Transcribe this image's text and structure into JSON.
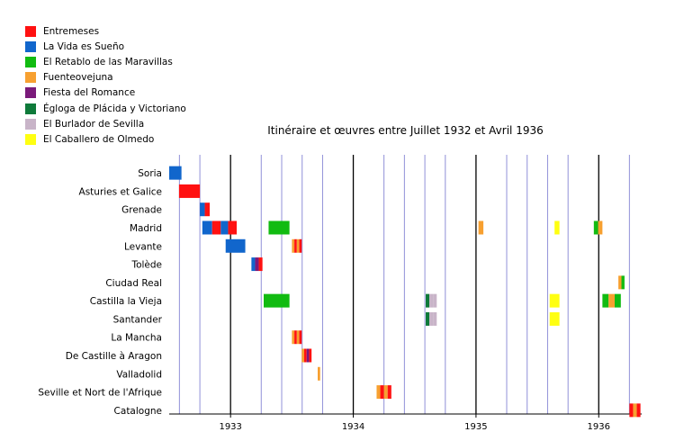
{
  "chart_data": {
    "type": "timeline",
    "title": "Itinéraire et œuvres entre Juillet 1932 et Avril 1936",
    "works": [
      {
        "name": "Entremeses",
        "color": "#ff1111"
      },
      {
        "name": "La Vida es Sueño",
        "color": "#1166cc"
      },
      {
        "name": "El Retablo de las Maravillas",
        "color": "#11bb11"
      },
      {
        "name": "Fuenteovejuna",
        "color": "#f7a030"
      },
      {
        "name": "Fiesta del Romance",
        "color": "#7a1a7a"
      },
      {
        "name": "Égloga de Plácida y Victoriano",
        "color": "#0f7a3a"
      },
      {
        "name": "El Burlador de Sevilla",
        "color": "#c8b4c8"
      },
      {
        "name": "El Caballero de Olmedo",
        "color": "#ffff11"
      }
    ],
    "regions": [
      "Soria",
      "Asturies et Galice",
      "Grenade",
      "Madrid",
      "Levante",
      "Tolède",
      "Ciudad Real",
      "Castilla la Vieja",
      "Santander",
      "La Mancha",
      "De Castille à Aragon",
      "Valladolid",
      "Seville et Nort de l'Afrique",
      "Catalogne"
    ],
    "x_axis": {
      "start": 1932.5,
      "end": 1936.35,
      "year_ticks": [
        "1933",
        "1934",
        "1935",
        "1936"
      ],
      "minor_grid_months": [
        4,
        6,
        8,
        10
      ]
    },
    "events": [
      {
        "region": "Soria",
        "start": 1932.5,
        "end": 1932.6,
        "works": [
          "La Vida es Sueño"
        ]
      },
      {
        "region": "Asturies et Galice",
        "start": 1932.58,
        "end": 1932.75,
        "works": [
          "Entremeses"
        ]
      },
      {
        "region": "Grenade",
        "start": 1932.75,
        "end": 1932.83,
        "works": [
          "La Vida es Sueño",
          "Entremeses"
        ]
      },
      {
        "region": "Madrid",
        "start": 1932.77,
        "end": 1932.85,
        "works": [
          "La Vida es Sueño"
        ]
      },
      {
        "region": "Madrid",
        "start": 1932.85,
        "end": 1932.92,
        "works": [
          "Entremeses"
        ]
      },
      {
        "region": "Madrid",
        "start": 1932.92,
        "end": 1932.98,
        "works": [
          "La Vida es Sueño"
        ]
      },
      {
        "region": "Madrid",
        "start": 1932.98,
        "end": 1933.05,
        "works": [
          "Entremeses"
        ]
      },
      {
        "region": "Madrid",
        "start": 1933.31,
        "end": 1933.48,
        "works": [
          "El Retablo de las Maravillas"
        ]
      },
      {
        "region": "Madrid",
        "start": 1935.02,
        "end": 1935.06,
        "works": [
          "Fuenteovejuna"
        ]
      },
      {
        "region": "Madrid",
        "start": 1935.64,
        "end": 1935.68,
        "works": [
          "El Caballero de Olmedo"
        ]
      },
      {
        "region": "Madrid",
        "start": 1935.96,
        "end": 1936.03,
        "works": [
          "El Retablo de las Maravillas",
          "Fuenteovejuna"
        ]
      },
      {
        "region": "Levante",
        "start": 1932.96,
        "end": 1933.12,
        "works": [
          "La Vida es Sueño"
        ]
      },
      {
        "region": "Levante",
        "start": 1933.5,
        "end": 1933.58,
        "works": [
          "Fuenteovejuna",
          "Entremeses",
          "Fuenteovejuna",
          "Entremeses"
        ]
      },
      {
        "region": "Tolède",
        "start": 1933.17,
        "end": 1933.26,
        "works": [
          "La Vida es Sueño",
          "Fiesta del Romance",
          "Entremeses"
        ]
      },
      {
        "region": "Ciudad Real",
        "start": 1936.16,
        "end": 1936.21,
        "works": [
          "Fuenteovejuna",
          "El Retablo de las Maravillas"
        ]
      },
      {
        "region": "Castilla la Vieja",
        "start": 1933.27,
        "end": 1933.48,
        "works": [
          "El Retablo de las Maravillas"
        ]
      },
      {
        "region": "Castilla la Vieja",
        "start": 1934.59,
        "end": 1934.68,
        "works": [
          "Égloga de Plácida y Victoriano",
          "El Burlador de Sevilla",
          "El Burlador de Sevilla"
        ]
      },
      {
        "region": "Castilla la Vieja",
        "start": 1935.6,
        "end": 1935.68,
        "works": [
          "El Caballero de Olmedo"
        ]
      },
      {
        "region": "Castilla la Vieja",
        "start": 1936.03,
        "end": 1936.18,
        "works": [
          "El Retablo de las Maravillas",
          "Fuenteovejuna",
          "El Retablo de las Maravillas"
        ]
      },
      {
        "region": "Santander",
        "start": 1934.59,
        "end": 1934.68,
        "works": [
          "Égloga de Plácida y Victoriano",
          "El Burlador de Sevilla",
          "El Burlador de Sevilla"
        ]
      },
      {
        "region": "Santander",
        "start": 1935.6,
        "end": 1935.68,
        "works": [
          "El Caballero de Olmedo"
        ]
      },
      {
        "region": "La Mancha",
        "start": 1933.5,
        "end": 1933.58,
        "works": [
          "Fuenteovejuna",
          "Entremeses",
          "Fuenteovejuna",
          "Entremeses"
        ]
      },
      {
        "region": "De Castille à Aragon",
        "start": 1933.58,
        "end": 1933.66,
        "works": [
          "Fuenteovejuna",
          "Entremeses",
          "Fiesta del Romance",
          "Entremeses"
        ]
      },
      {
        "region": "Valladolid",
        "start": 1933.71,
        "end": 1933.73,
        "works": [
          "Fuenteovejuna"
        ]
      },
      {
        "region": "Seville et Nort de l'Afrique",
        "start": 1934.19,
        "end": 1934.31,
        "works": [
          "Fuenteovejuna",
          "Entremeses",
          "Fuenteovejuna",
          "Entremeses"
        ]
      },
      {
        "region": "Catalogne",
        "start": 1936.25,
        "end": 1936.34,
        "works": [
          "Entremeses",
          "Fuenteovejuna",
          "Entremeses"
        ]
      }
    ]
  }
}
